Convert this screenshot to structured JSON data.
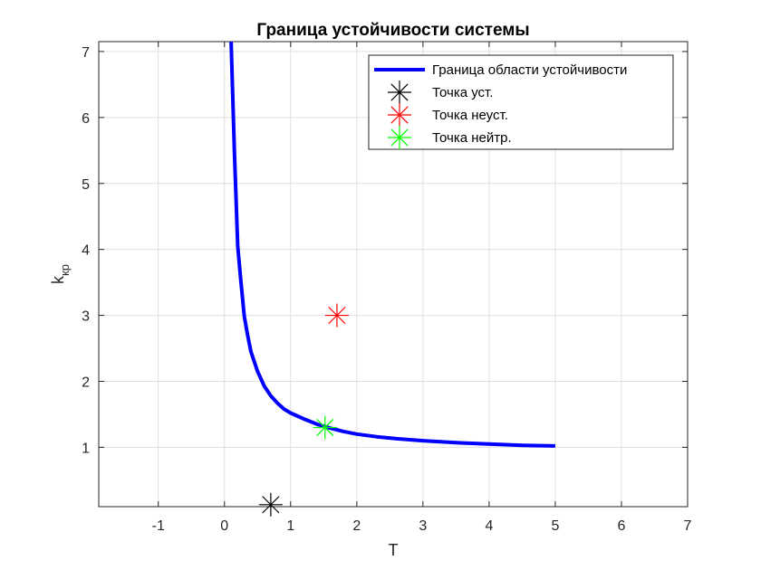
{
  "chart_data": {
    "type": "line",
    "title": "Граница устойчивости системы",
    "xlabel": "T",
    "ylabel_main": "k",
    "ylabel_sub": "кр",
    "xlim": [
      -1.9,
      7
    ],
    "ylim": [
      0.1,
      7.15
    ],
    "xticks": [
      -1,
      0,
      1,
      2,
      3,
      4,
      5,
      6,
      7
    ],
    "yticks": [
      1,
      2,
      3,
      4,
      5,
      6,
      7
    ],
    "grid": true,
    "legend_position": "top-right",
    "series": [
      {
        "name": "Граница области устойчивости",
        "kind": "line",
        "color": "#0000ff",
        "x": [
          0.1,
          0.15,
          0.2,
          0.25,
          0.3,
          0.35,
          0.4,
          0.5,
          0.6,
          0.7,
          0.8,
          0.9,
          1.0,
          1.2,
          1.4,
          1.6,
          1.8,
          2.0,
          2.3,
          2.6,
          3.0,
          3.5,
          4.0,
          4.5,
          5.0
        ],
        "y": [
          7.15,
          5.5,
          4.05,
          3.5,
          2.98,
          2.7,
          2.45,
          2.15,
          1.93,
          1.78,
          1.67,
          1.58,
          1.52,
          1.43,
          1.35,
          1.29,
          1.24,
          1.2,
          1.16,
          1.13,
          1.1,
          1.07,
          1.05,
          1.03,
          1.02
        ]
      },
      {
        "name": "Точка уст.",
        "kind": "marker",
        "color": "#000000",
        "x": [
          0.7
        ],
        "y": [
          0.13
        ]
      },
      {
        "name": "Точка неуст.",
        "kind": "marker",
        "color": "#ff0000",
        "x": [
          1.7
        ],
        "y": [
          3.0
        ]
      },
      {
        "name": "Точка нейтр.",
        "kind": "marker",
        "color": "#00ff00",
        "x": [
          1.52
        ],
        "y": [
          1.3
        ]
      }
    ]
  }
}
